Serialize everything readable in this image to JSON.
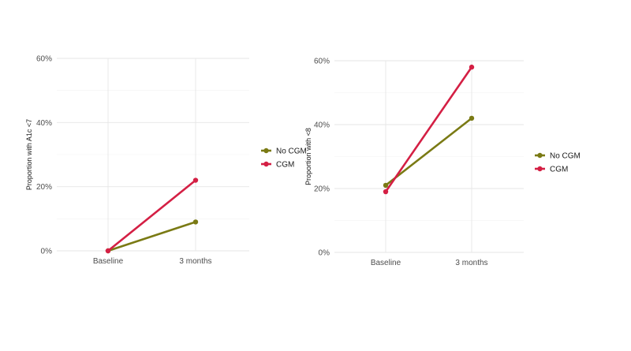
{
  "chart_data": [
    {
      "type": "line",
      "title": "",
      "xlabel": "",
      "ylabel": "Proportion with A1c <7",
      "categories": [
        "Baseline",
        "3 months"
      ],
      "ylim": [
        0,
        0.6
      ],
      "yticks": [
        0,
        0.2,
        0.4,
        0.6
      ],
      "ytick_labels": [
        "0%",
        "20%",
        "40%",
        "60%"
      ],
      "grid": true,
      "legend_position": "right",
      "series": [
        {
          "name": "No CGM",
          "values": [
            0.0,
            0.09
          ],
          "color": "#7a7a14"
        },
        {
          "name": "CGM",
          "values": [
            0.0,
            0.22
          ],
          "color": "#d41f44"
        }
      ]
    },
    {
      "type": "line",
      "title": "",
      "xlabel": "",
      "ylabel": "Proportion with <8",
      "categories": [
        "Baseline",
        "3 months"
      ],
      "ylim": [
        0,
        0.6
      ],
      "yticks": [
        0,
        0.2,
        0.4,
        0.6
      ],
      "ytick_labels": [
        "0%",
        "20%",
        "40%",
        "60%"
      ],
      "grid": true,
      "legend_position": "right",
      "series": [
        {
          "name": "No CGM",
          "values": [
            0.21,
            0.42
          ],
          "color": "#7a7a14"
        },
        {
          "name": "CGM",
          "values": [
            0.19,
            0.58
          ],
          "color": "#d41f44"
        }
      ]
    }
  ]
}
